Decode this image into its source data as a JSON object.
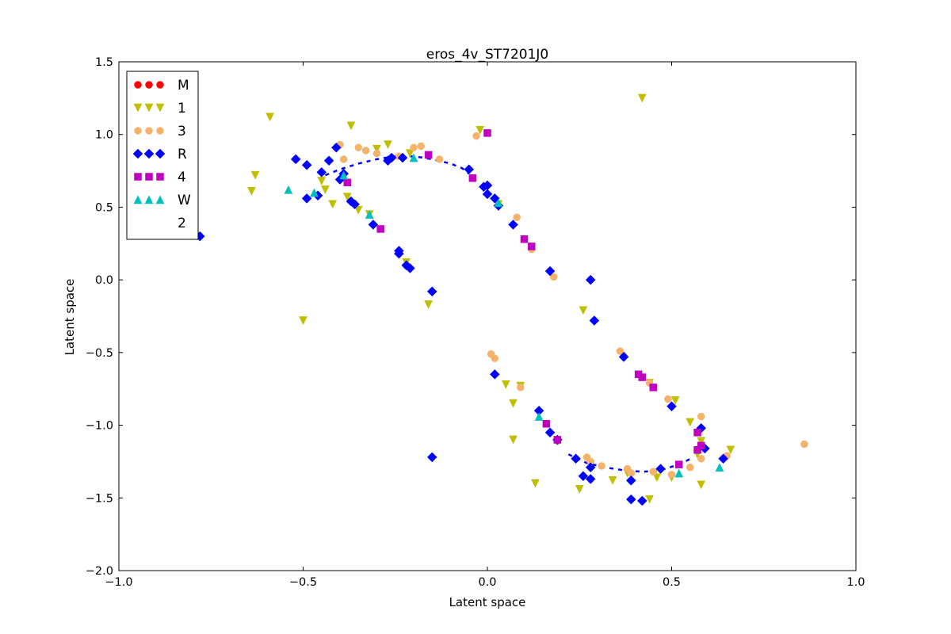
{
  "chart_data": {
    "type": "scatter",
    "title": "eros_4v_ST7201J0",
    "xlabel": "Latent space",
    "ylabel": "Latent space",
    "xlim": [
      -1.0,
      1.0
    ],
    "ylim": [
      -2.0,
      1.5
    ],
    "x_ticks": [
      "−1.0",
      "−0.5",
      "0.0",
      "0.5",
      "1.0"
    ],
    "y_ticks": [
      "1.5",
      "1.0",
      "0.5",
      "0.0",
      "−0.5",
      "−1.0",
      "−1.5",
      "−2.0"
    ],
    "grid": false,
    "legend_position": "upper-left",
    "series": [
      {
        "name": "M",
        "marker": "circle",
        "color": "#ff0000",
        "points": []
      },
      {
        "name": "1",
        "marker": "triangle-down",
        "color": "#bfbf00",
        "points": [
          [
            -0.64,
            0.61
          ],
          [
            -0.63,
            0.72
          ],
          [
            -0.59,
            1.12
          ],
          [
            -0.5,
            -0.28
          ],
          [
            -0.45,
            0.68
          ],
          [
            -0.44,
            0.62
          ],
          [
            -0.42,
            0.52
          ],
          [
            -0.38,
            0.57
          ],
          [
            -0.37,
            1.06
          ],
          [
            -0.35,
            0.48
          ],
          [
            -0.27,
            0.93
          ],
          [
            -0.22,
            0.12
          ],
          [
            -0.16,
            -0.17
          ],
          [
            -0.02,
            1.03
          ],
          [
            0.03,
            0.52
          ],
          [
            0.05,
            -0.72
          ],
          [
            0.07,
            -0.85
          ],
          [
            0.09,
            -0.73
          ],
          [
            0.07,
            -1.1
          ],
          [
            0.13,
            -1.4
          ],
          [
            0.25,
            -1.44
          ],
          [
            0.26,
            -0.21
          ],
          [
            0.28,
            -1.27
          ],
          [
            0.34,
            -1.38
          ],
          [
            0.42,
            1.25
          ],
          [
            0.44,
            -1.51
          ],
          [
            0.46,
            -1.36
          ],
          [
            0.51,
            -0.83
          ],
          [
            0.55,
            -0.98
          ],
          [
            0.58,
            -1.11
          ],
          [
            0.58,
            -1.41
          ],
          [
            0.66,
            -1.17
          ],
          [
            0.5,
            -1.36
          ],
          [
            0.44,
            -0.71
          ],
          [
            -0.32,
            0.45
          ],
          [
            -0.3,
            0.9
          ],
          [
            -0.21,
            0.87
          ],
          [
            0.57,
            -1.2
          ],
          [
            0.38,
            -1.33
          ]
        ]
      },
      {
        "name": "3",
        "marker": "circle",
        "color": "#f5b26b",
        "points": [
          [
            -0.4,
            0.93
          ],
          [
            -0.39,
            0.83
          ],
          [
            -0.35,
            0.91
          ],
          [
            -0.33,
            0.89
          ],
          [
            -0.3,
            0.87
          ],
          [
            -0.2,
            0.91
          ],
          [
            -0.18,
            0.92
          ],
          [
            -0.03,
            0.99
          ],
          [
            0.01,
            -0.51
          ],
          [
            0.02,
            -0.54
          ],
          [
            0.08,
            0.43
          ],
          [
            0.09,
            -0.74
          ],
          [
            0.12,
            0.21
          ],
          [
            0.18,
            0.02
          ],
          [
            0.27,
            -1.22
          ],
          [
            0.28,
            -1.25
          ],
          [
            0.31,
            -1.28
          ],
          [
            0.36,
            -0.49
          ],
          [
            0.37,
            -0.52
          ],
          [
            0.38,
            -1.3
          ],
          [
            0.39,
            -1.33
          ],
          [
            0.44,
            -0.71
          ],
          [
            0.49,
            -0.82
          ],
          [
            0.5,
            -1.34
          ],
          [
            0.55,
            -1.29
          ],
          [
            0.58,
            -0.94
          ],
          [
            0.58,
            -1.23
          ],
          [
            0.65,
            -1.21
          ],
          [
            0.86,
            -1.13
          ],
          [
            -0.24,
            0.85
          ],
          [
            -0.13,
            0.83
          ],
          [
            0.19,
            -1.11
          ],
          [
            0.45,
            -1.32
          ]
        ]
      },
      {
        "name": "R",
        "marker": "diamond",
        "color": "#0000ff",
        "points": [
          [
            -0.78,
            0.3
          ],
          [
            -0.52,
            0.83
          ],
          [
            -0.49,
            0.79
          ],
          [
            -0.49,
            0.56
          ],
          [
            -0.46,
            0.58
          ],
          [
            -0.45,
            0.74
          ],
          [
            -0.43,
            0.82
          ],
          [
            -0.41,
            0.91
          ],
          [
            -0.4,
            0.69
          ],
          [
            -0.39,
            0.73
          ],
          [
            -0.37,
            0.54
          ],
          [
            -0.36,
            0.52
          ],
          [
            -0.31,
            0.38
          ],
          [
            -0.27,
            0.82
          ],
          [
            -0.26,
            0.84
          ],
          [
            -0.24,
            0.2
          ],
          [
            -0.24,
            0.18
          ],
          [
            -0.22,
            0.1
          ],
          [
            -0.21,
            0.08
          ],
          [
            -0.15,
            -0.08
          ],
          [
            -0.15,
            -1.22
          ],
          [
            -0.05,
            0.76
          ],
          [
            -0.01,
            0.64
          ],
          [
            0.0,
            0.65
          ],
          [
            0.0,
            0.59
          ],
          [
            0.02,
            0.56
          ],
          [
            0.03,
            0.51
          ],
          [
            0.07,
            0.38
          ],
          [
            0.02,
            -0.65
          ],
          [
            0.14,
            -0.9
          ],
          [
            0.17,
            0.06
          ],
          [
            0.17,
            -1.05
          ],
          [
            0.19,
            -1.1
          ],
          [
            0.24,
            -1.23
          ],
          [
            0.26,
            -1.35
          ],
          [
            0.28,
            -1.37
          ],
          [
            0.28,
            -1.29
          ],
          [
            0.28,
            0.0
          ],
          [
            0.29,
            -0.28
          ],
          [
            0.37,
            -0.53
          ],
          [
            0.39,
            -1.38
          ],
          [
            0.39,
            -1.51
          ],
          [
            0.42,
            -1.52
          ],
          [
            0.47,
            -1.3
          ],
          [
            0.5,
            -0.87
          ],
          [
            0.58,
            -1.02
          ],
          [
            0.59,
            -1.16
          ],
          [
            0.64,
            -1.23
          ],
          [
            -0.23,
            0.84
          ]
        ]
      },
      {
        "name": "4",
        "marker": "square",
        "color": "#bf00bf",
        "points": [
          [
            -0.38,
            0.67
          ],
          [
            -0.29,
            0.35
          ],
          [
            -0.16,
            0.86
          ],
          [
            -0.04,
            0.7
          ],
          [
            0.0,
            1.01
          ],
          [
            0.1,
            0.28
          ],
          [
            0.12,
            0.23
          ],
          [
            0.16,
            -0.99
          ],
          [
            0.41,
            -0.65
          ],
          [
            0.42,
            -0.67
          ],
          [
            0.45,
            -0.74
          ],
          [
            0.52,
            -1.27
          ],
          [
            0.57,
            -1.17
          ],
          [
            0.57,
            -1.05
          ],
          [
            0.58,
            -1.14
          ],
          [
            0.19,
            -1.1
          ]
        ]
      },
      {
        "name": "W",
        "marker": "triangle-up",
        "color": "#00bfbf",
        "points": [
          [
            -0.54,
            0.62
          ],
          [
            -0.47,
            0.6
          ],
          [
            -0.39,
            0.72
          ],
          [
            -0.32,
            0.45
          ],
          [
            -0.2,
            0.84
          ],
          [
            0.03,
            0.53
          ],
          [
            0.14,
            -0.94
          ],
          [
            0.52,
            -1.33
          ],
          [
            0.63,
            -1.29
          ]
        ]
      },
      {
        "name": "2",
        "marker": "none",
        "color": "#ffffff",
        "points": []
      }
    ],
    "overlay_curve": {
      "color": "#0000ff",
      "style": "dashed",
      "points": [
        [
          -0.44,
          0.72
        ],
        [
          -0.4,
          0.76
        ],
        [
          -0.35,
          0.8
        ],
        [
          -0.3,
          0.83
        ],
        [
          -0.25,
          0.85
        ],
        [
          -0.2,
          0.85
        ],
        [
          -0.15,
          0.83
        ],
        [
          -0.1,
          0.8
        ],
        [
          -0.07,
          0.77
        ],
        [
          -0.05,
          0.73
        ]
      ]
    },
    "overlay_curve_2": {
      "color": "#0000ff",
      "style": "dashed",
      "points": [
        [
          0.22,
          -1.2
        ],
        [
          0.27,
          -1.26
        ],
        [
          0.32,
          -1.29
        ],
        [
          0.37,
          -1.31
        ],
        [
          0.42,
          -1.32
        ],
        [
          0.47,
          -1.31
        ],
        [
          0.52,
          -1.27
        ],
        [
          0.56,
          -1.22
        ]
      ]
    }
  }
}
